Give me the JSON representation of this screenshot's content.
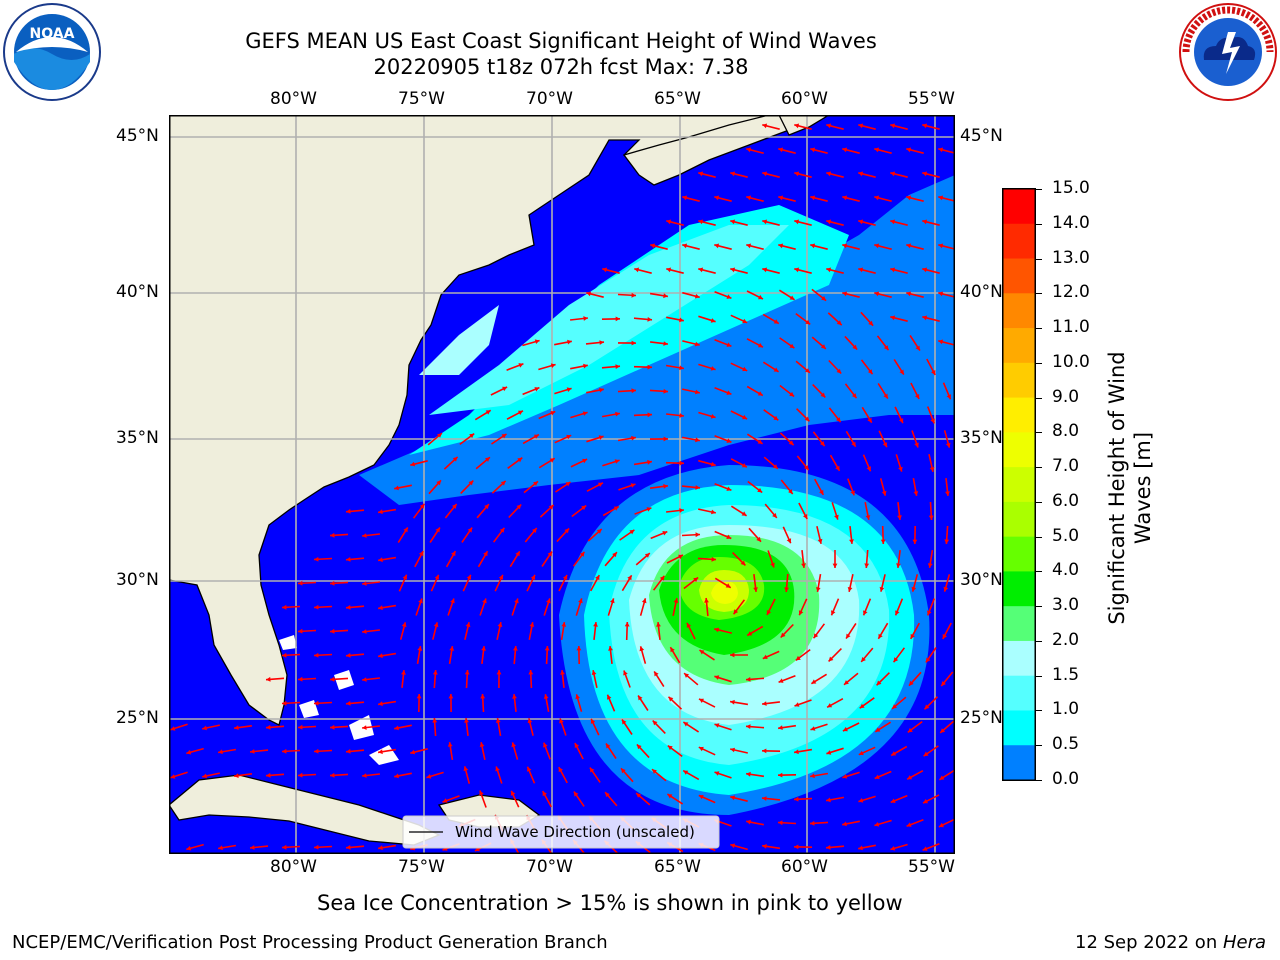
{
  "title": {
    "line1": "GEFS MEAN US East Coast Significant Height of Wind Waves",
    "line2": "20220905 t18z 072h fcst   Max: 7.38"
  },
  "logos": {
    "left": "noaa-logo",
    "right": "nws-logo"
  },
  "map": {
    "lon_labels": [
      "80°W",
      "75°W",
      "70°W",
      "65°W",
      "60°W",
      "55°W"
    ],
    "lat_labels": [
      "45°N",
      "40°N",
      "35°N",
      "30°N",
      "25°N"
    ],
    "extent": {
      "lon": [
        -85,
        -54.3
      ],
      "lat": [
        20.5,
        46.2
      ]
    },
    "colors": {
      "land": "#efeedc",
      "ocean": "#0000ff",
      "arrow": "#ff0000",
      "grid": "#b0b0b0",
      "coast": "#000000"
    },
    "storm_center": {
      "lon": -63.5,
      "lat": 29.3,
      "max_height_m": 7.38
    },
    "legend_label": "Wind Wave Direction (unscaled)"
  },
  "colorbar": {
    "label": "Significant Height of Wind Waves [m]",
    "ticks": [
      "15.0",
      "14.0",
      "13.0",
      "12.0",
      "11.0",
      "10.0",
      "9.0",
      "8.0",
      "7.0",
      "6.0",
      "5.0",
      "4.0",
      "3.0",
      "2.0",
      "1.5",
      "1.0",
      "0.5",
      "0.0"
    ],
    "colors": [
      "#ff0000",
      "#ff2a00",
      "#ff5500",
      "#ff8800",
      "#ffaa00",
      "#ffcc00",
      "#ffee00",
      "#eeff00",
      "#ccff00",
      "#aaff00",
      "#66ff00",
      "#00ee00",
      "#55ff77",
      "#aaffff",
      "#55ffff",
      "#00ffff",
      "#0080ff",
      "#0000ff"
    ]
  },
  "caption": "Sea Ice Concentration > 15% is shown in pink to yellow",
  "footer": {
    "left": "NCEP/EMC/Verification Post Processing Product Generation Branch",
    "right_prefix": "12 Sep 2022 on ",
    "right_host": "Hera"
  }
}
